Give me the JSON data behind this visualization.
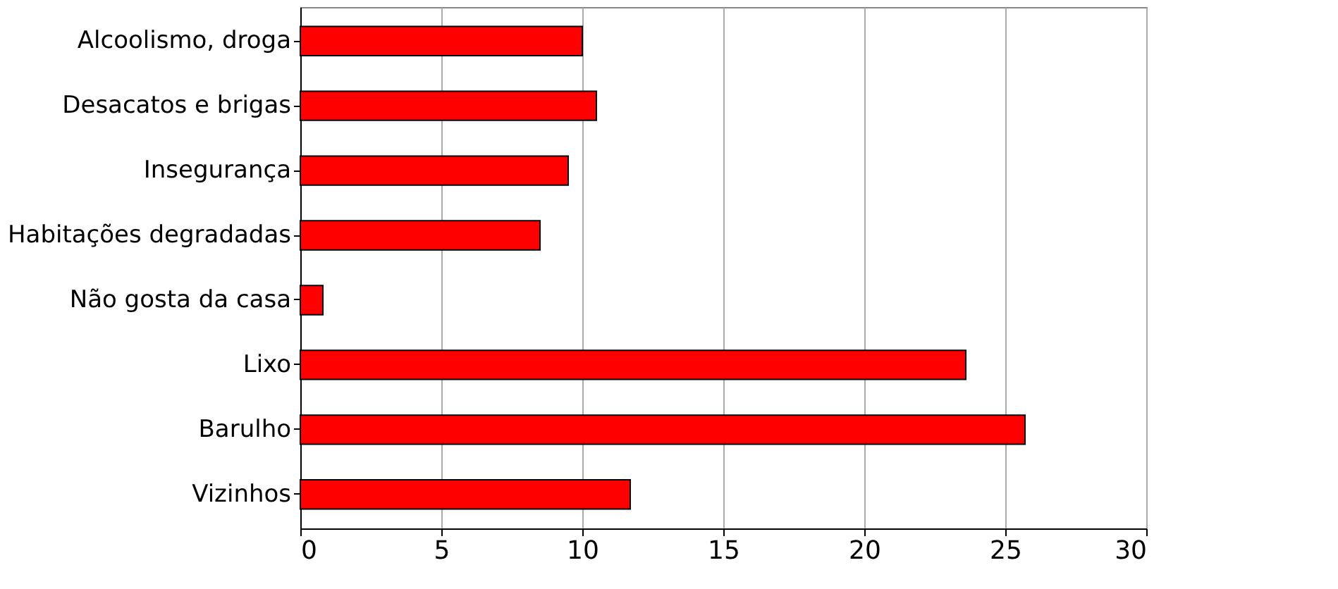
{
  "chart_data": {
    "type": "bar",
    "orientation": "horizontal",
    "categories": [
      "Alcoolismo, droga",
      "Desacatos e brigas",
      "Insegurança",
      "Habitações degradadas",
      "Não gosta da casa",
      "Lixo",
      "Barulho",
      "Vizinhos"
    ],
    "values": [
      10.0,
      10.5,
      9.5,
      8.5,
      0.8,
      23.6,
      25.7,
      11.7
    ],
    "color": "#ff0000",
    "xlim": [
      0,
      30
    ],
    "xticks": [
      0,
      5,
      10,
      15,
      20,
      25,
      30
    ],
    "grid": "x"
  }
}
